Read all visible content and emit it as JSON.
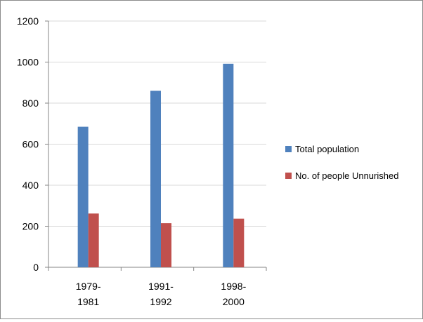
{
  "chart_data": {
    "type": "bar",
    "categories": [
      [
        "1979-",
        "1981"
      ],
      [
        "1991-",
        "1992"
      ],
      [
        "1998-",
        "2000"
      ]
    ],
    "series": [
      {
        "name": "Total population",
        "values": [
          685,
          860,
          992
        ],
        "color": "#4f81bd"
      },
      {
        "name": "No. of people Unnurished",
        "values": [
          262,
          215,
          237
        ],
        "color": "#c0504d"
      }
    ],
    "ylim": [
      0,
      1200
    ],
    "yticks": [
      0,
      200,
      400,
      600,
      800,
      1000,
      1200
    ],
    "grid": true,
    "legend_position": "right"
  }
}
